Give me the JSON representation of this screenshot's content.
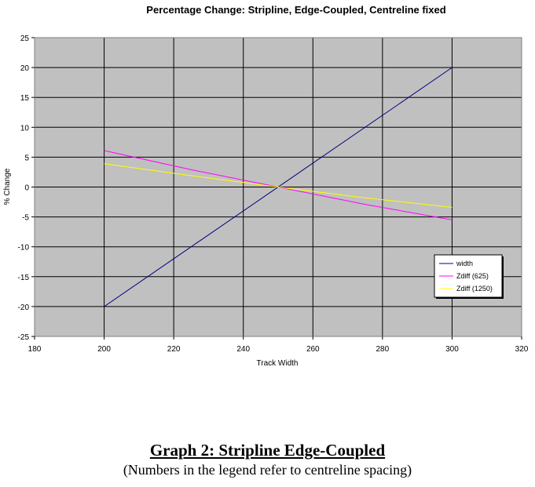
{
  "chart_data": {
    "type": "line",
    "title": "Percentage Change: Stripline, Edge-Coupled, Centreline fixed",
    "xlabel": "Track Width",
    "ylabel": "% Change",
    "xlim": [
      180,
      320
    ],
    "ylim": [
      -25,
      25
    ],
    "x_ticks": [
      180,
      200,
      220,
      240,
      260,
      280,
      300,
      320
    ],
    "y_ticks": [
      25,
      20,
      15,
      10,
      5,
      0,
      -5,
      -10,
      -15,
      -20,
      -25
    ],
    "grid": true,
    "legend_position": "bottom-right",
    "plot_background": "#c0c0c0",
    "series": [
      {
        "name": "width",
        "color": "#000080",
        "points": [
          [
            200,
            -20
          ],
          [
            300,
            20
          ]
        ]
      },
      {
        "name": "Zdiff (625)",
        "color": "#ff00ff",
        "points": [
          [
            200,
            6.1
          ],
          [
            225,
            2.9
          ],
          [
            250,
            0
          ],
          [
            275,
            -2.9
          ],
          [
            300,
            -5.5
          ]
        ]
      },
      {
        "name": "Zdiff (1250)",
        "color": "#ffff00",
        "points": [
          [
            200,
            3.9
          ],
          [
            225,
            1.9
          ],
          [
            250,
            0
          ],
          [
            275,
            -1.8
          ],
          [
            300,
            -3.4
          ]
        ]
      }
    ]
  },
  "caption": {
    "title": "Graph 2: Stripline Edge-Coupled",
    "subtitle": "(Numbers in the legend refer to centreline spacing)"
  }
}
